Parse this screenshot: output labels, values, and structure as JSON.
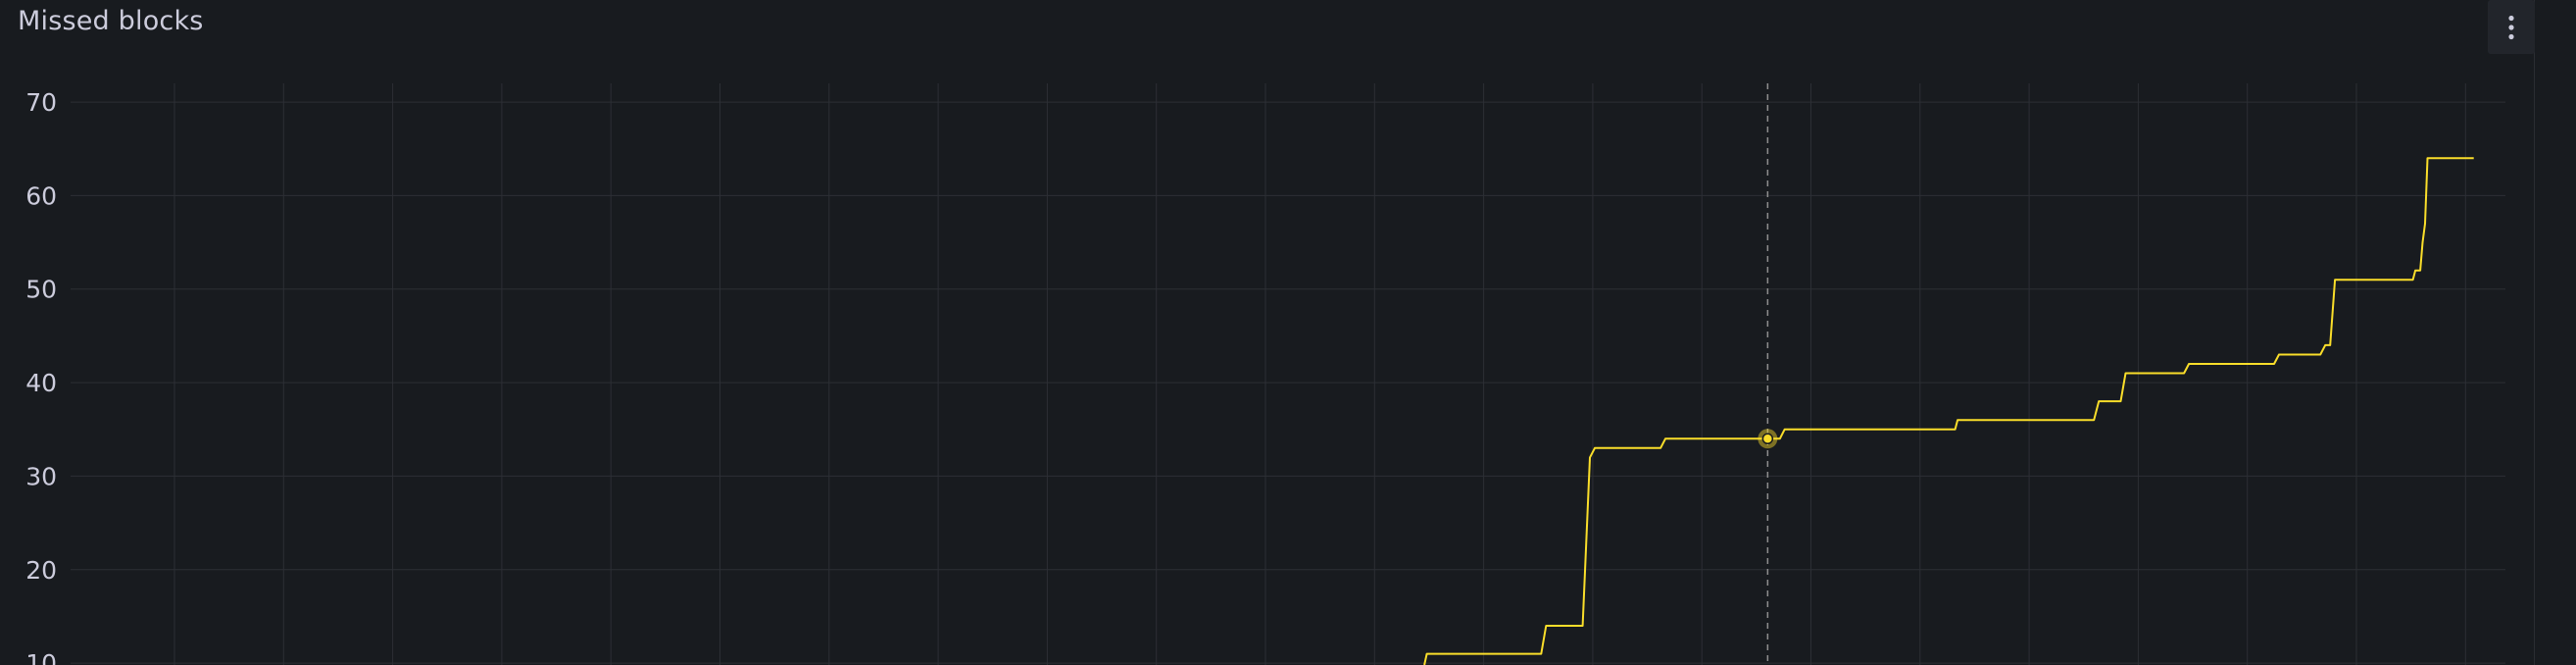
{
  "panel": {
    "title": "Missed blocks",
    "menu_icon": "kebab-vertical-icon"
  },
  "colors": {
    "background": "#181b1f",
    "series": "#fade2a",
    "grid": "#2c2f35",
    "crosshair": "#8e8e8e",
    "text": "#ccccdc"
  },
  "chart_data": {
    "type": "line",
    "title": "Missed blocks",
    "xlabel": "",
    "ylabel": "",
    "y_ticks": [
      "70",
      "60",
      "50",
      "40",
      "30",
      "20",
      "10"
    ],
    "ylim": [
      9.8,
      72
    ],
    "grid": true,
    "x_tick_labels_visible": false,
    "hover_point": {
      "x": 0.697,
      "y": 34
    },
    "series": [
      {
        "name": "",
        "x": [
          0.556,
          0.557,
          0.604,
          0.606,
          0.621,
          0.624,
          0.626,
          0.653,
          0.655,
          0.697,
          0.699,
          0.702,
          0.704,
          0.774,
          0.775,
          0.831,
          0.833,
          0.842,
          0.844,
          0.868,
          0.87,
          0.905,
          0.907,
          0.924,
          0.926,
          0.928,
          0.93,
          0.962,
          0.963,
          0.965,
          0.966,
          0.967,
          0.968,
          0.987
        ],
        "y": [
          9.8,
          11,
          11,
          14,
          14,
          32,
          33,
          33,
          34,
          34,
          34,
          34,
          35,
          35,
          36,
          36,
          38,
          38,
          41,
          41,
          42,
          42,
          43,
          43,
          44,
          44,
          51,
          51,
          52,
          52,
          55,
          57,
          64,
          64
        ]
      }
    ]
  }
}
